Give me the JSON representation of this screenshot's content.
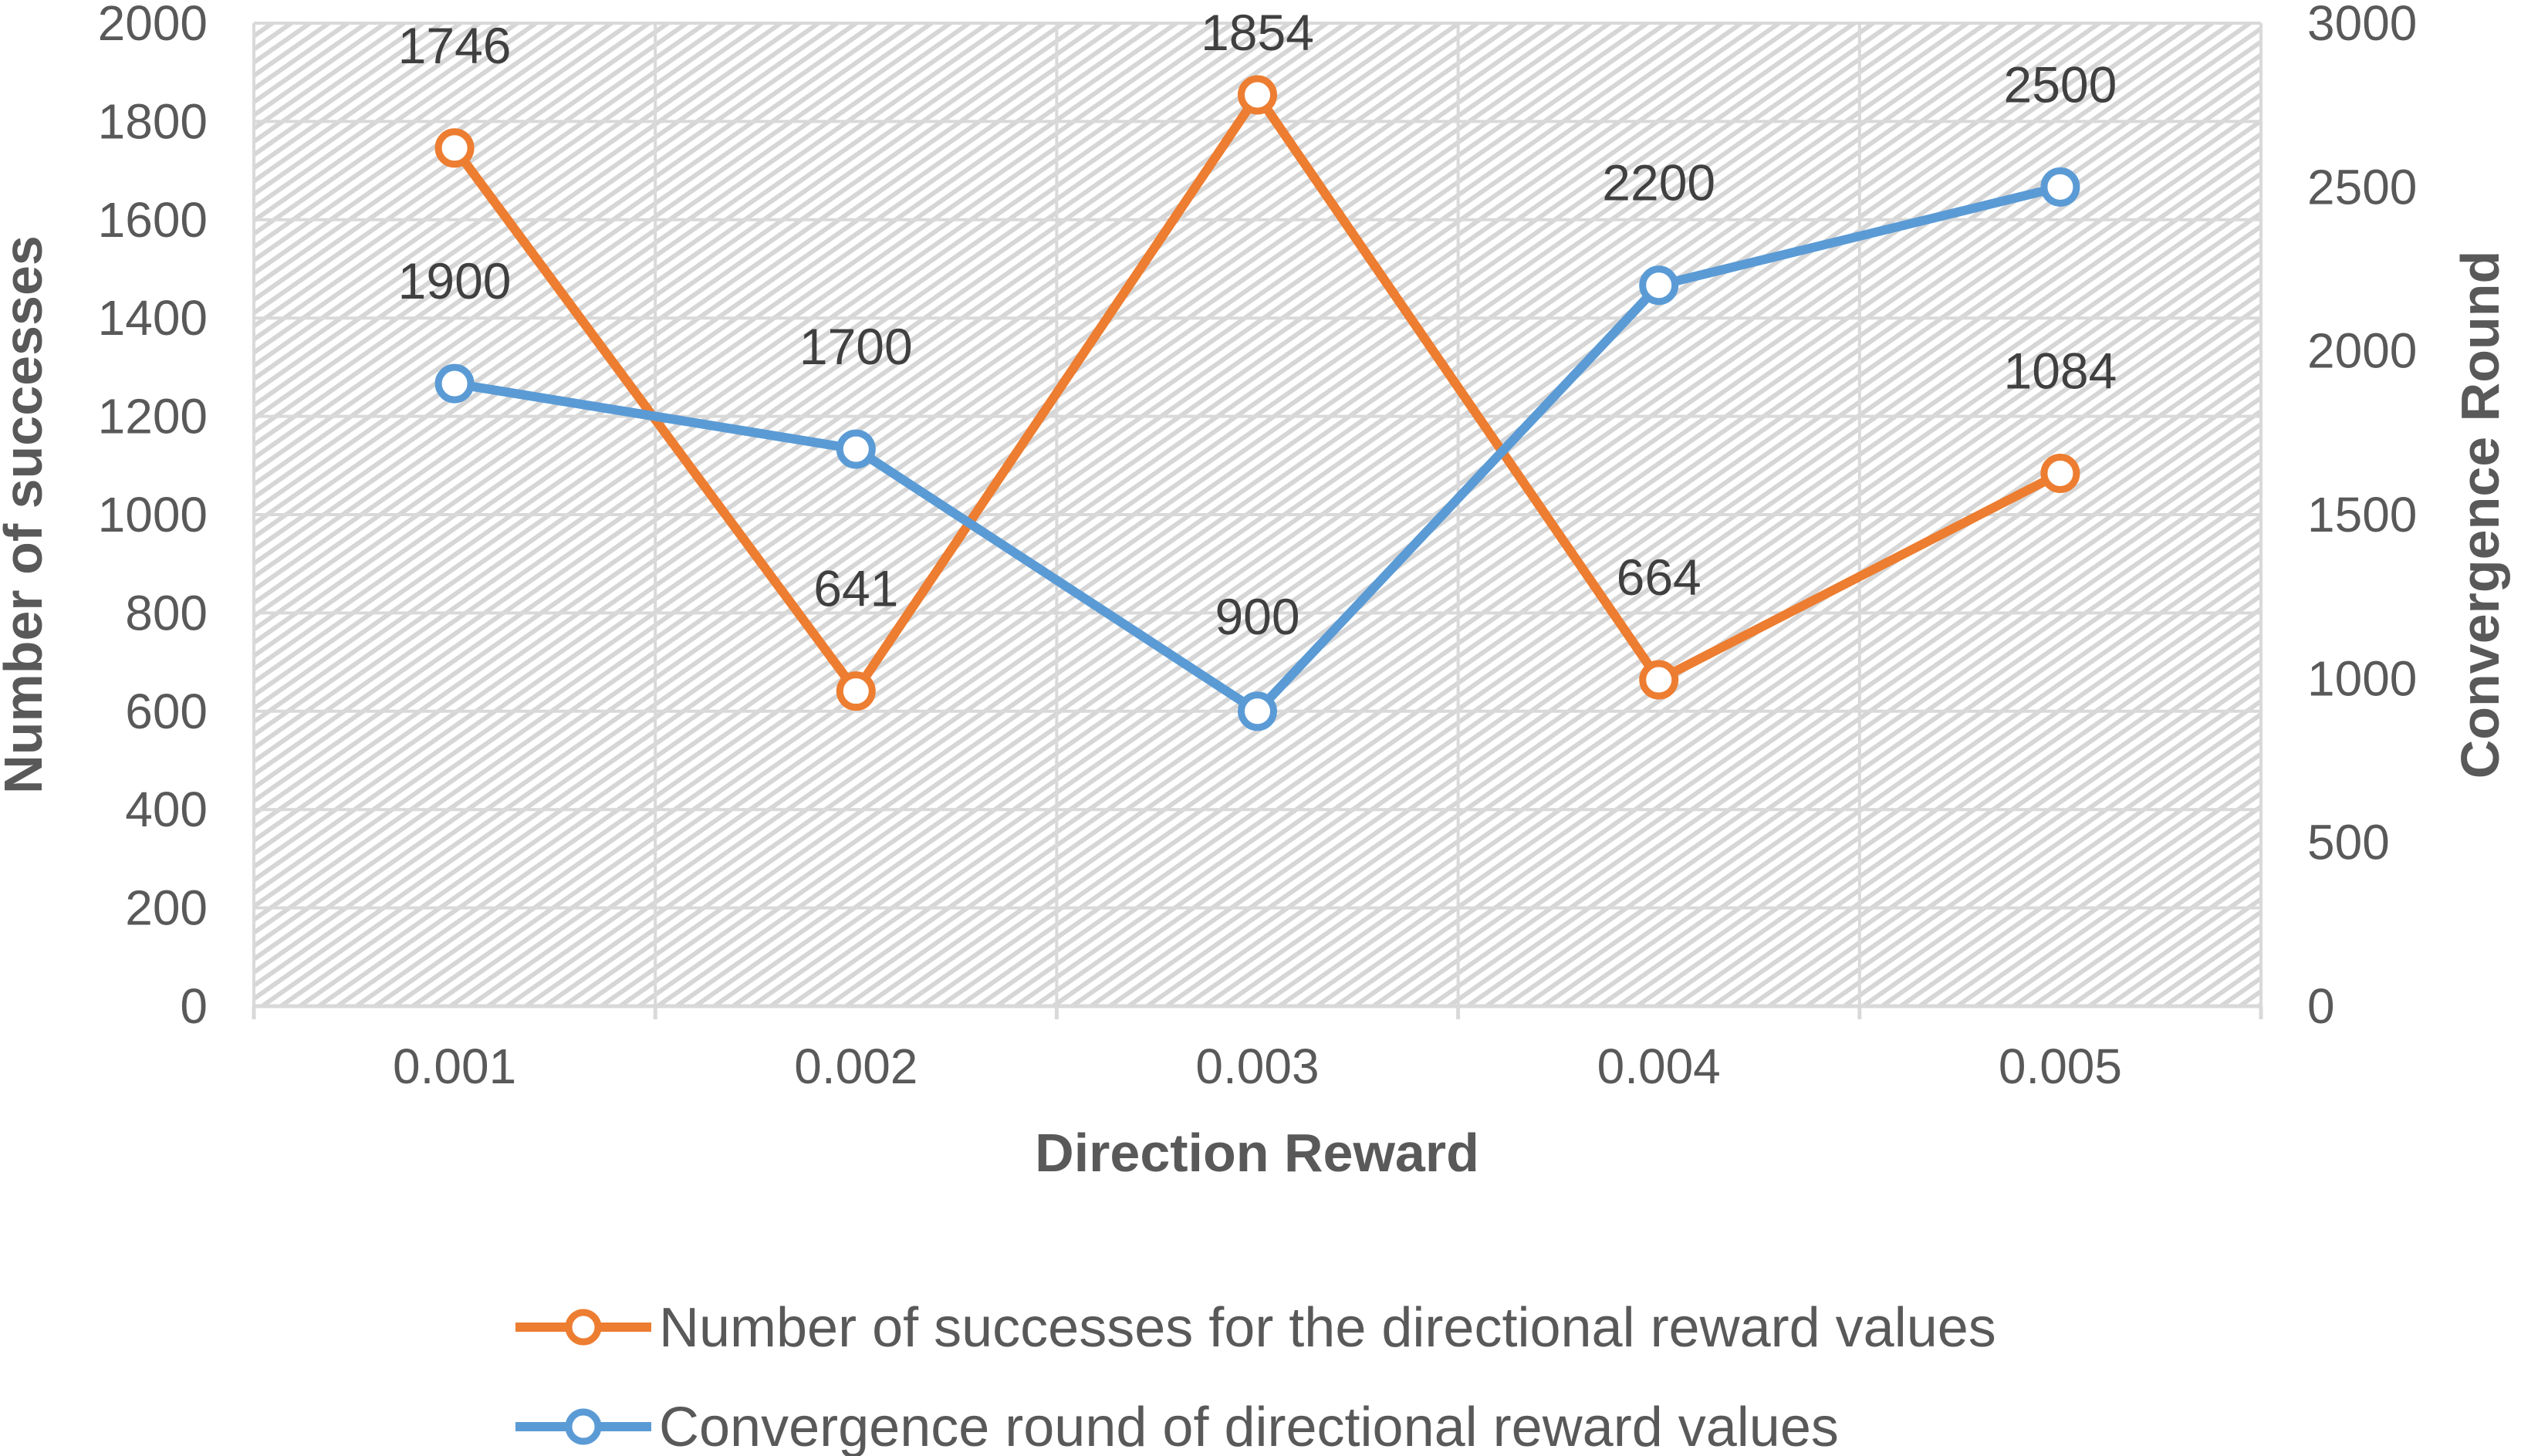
{
  "chart_data": {
    "type": "line",
    "title": "",
    "xlabel": "Direction Reward",
    "ylabel": "Number of successes",
    "y2label": "Convergence Round",
    "categories": [
      "0.001",
      "0.002",
      "0.003",
      "0.004",
      "0.005"
    ],
    "ylim": [
      0,
      2000
    ],
    "y_ticks": [
      "0",
      "200",
      "400",
      "600",
      "800",
      "1000",
      "1200",
      "1400",
      "1600",
      "1800",
      "2000"
    ],
    "y2lim": [
      0,
      3000
    ],
    "y2_ticks": [
      "0",
      "500",
      "1000",
      "1500",
      "2000",
      "2500",
      "3000"
    ],
    "grid": true,
    "legend_position": "bottom",
    "series": [
      {
        "name": "Number of successes for the directional reward values",
        "axis": "left",
        "color": "#ED7D31",
        "values": [
          1746,
          641,
          1854,
          664,
          1084
        ],
        "labels": [
          "1746",
          "641",
          "1854",
          "664",
          "1084"
        ]
      },
      {
        "name": "Convergence round of directional reward values",
        "axis": "right",
        "color": "#5B9BD5",
        "values": [
          1900,
          1700,
          900,
          2200,
          2500
        ],
        "labels": [
          "1900",
          "1700",
          "900",
          "2200",
          "2500"
        ]
      }
    ]
  }
}
